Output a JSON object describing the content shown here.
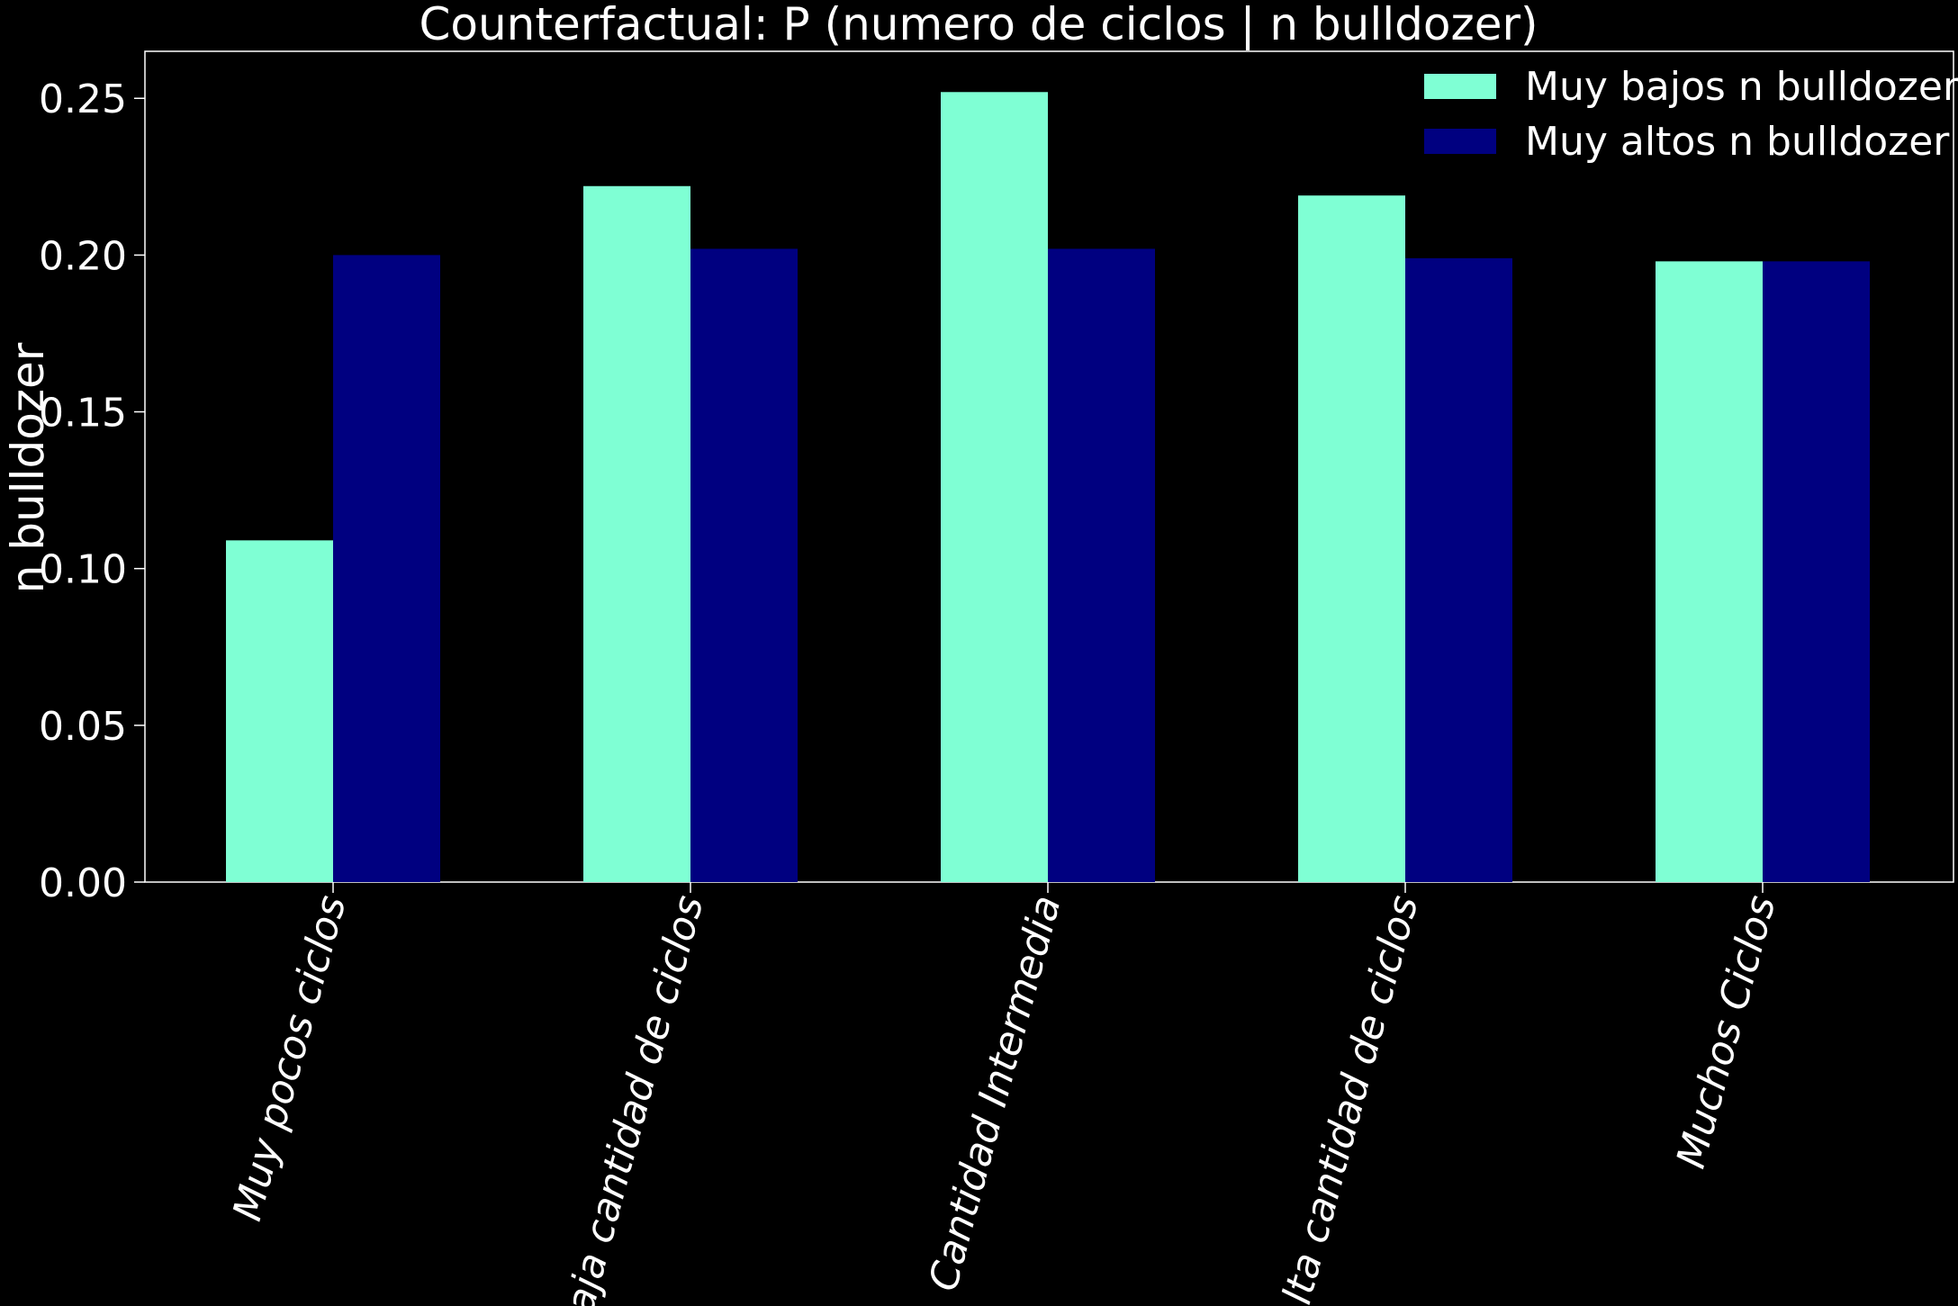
{
  "chart_data": {
    "type": "bar",
    "title": "Counterfactual: P (numero de ciclos | n bulldozer)",
    "xlabel": "",
    "ylabel": "n bulldozer",
    "categories": [
      "Muy pocos ciclos",
      "Baja cantidad de ciclos",
      "Cantidad Intermedia",
      "Alta cantidad de ciclos",
      "Muchos Ciclos"
    ],
    "series": [
      {
        "name": "Muy bajos n bulldozer",
        "color": "#7fffd4",
        "values": [
          0.109,
          0.222,
          0.252,
          0.219,
          0.198
        ]
      },
      {
        "name": "Muy altos n bulldozer",
        "color": "#000080",
        "values": [
          0.2,
          0.202,
          0.202,
          0.199,
          0.198
        ]
      }
    ],
    "ylim": [
      0,
      0.265
    ],
    "yticks": [
      "0.00",
      "0.05",
      "0.10",
      "0.15",
      "0.20",
      "0.25"
    ],
    "grid": false,
    "legend_position": "top-right",
    "background": "#000000",
    "axis_color": "#ffffff"
  }
}
